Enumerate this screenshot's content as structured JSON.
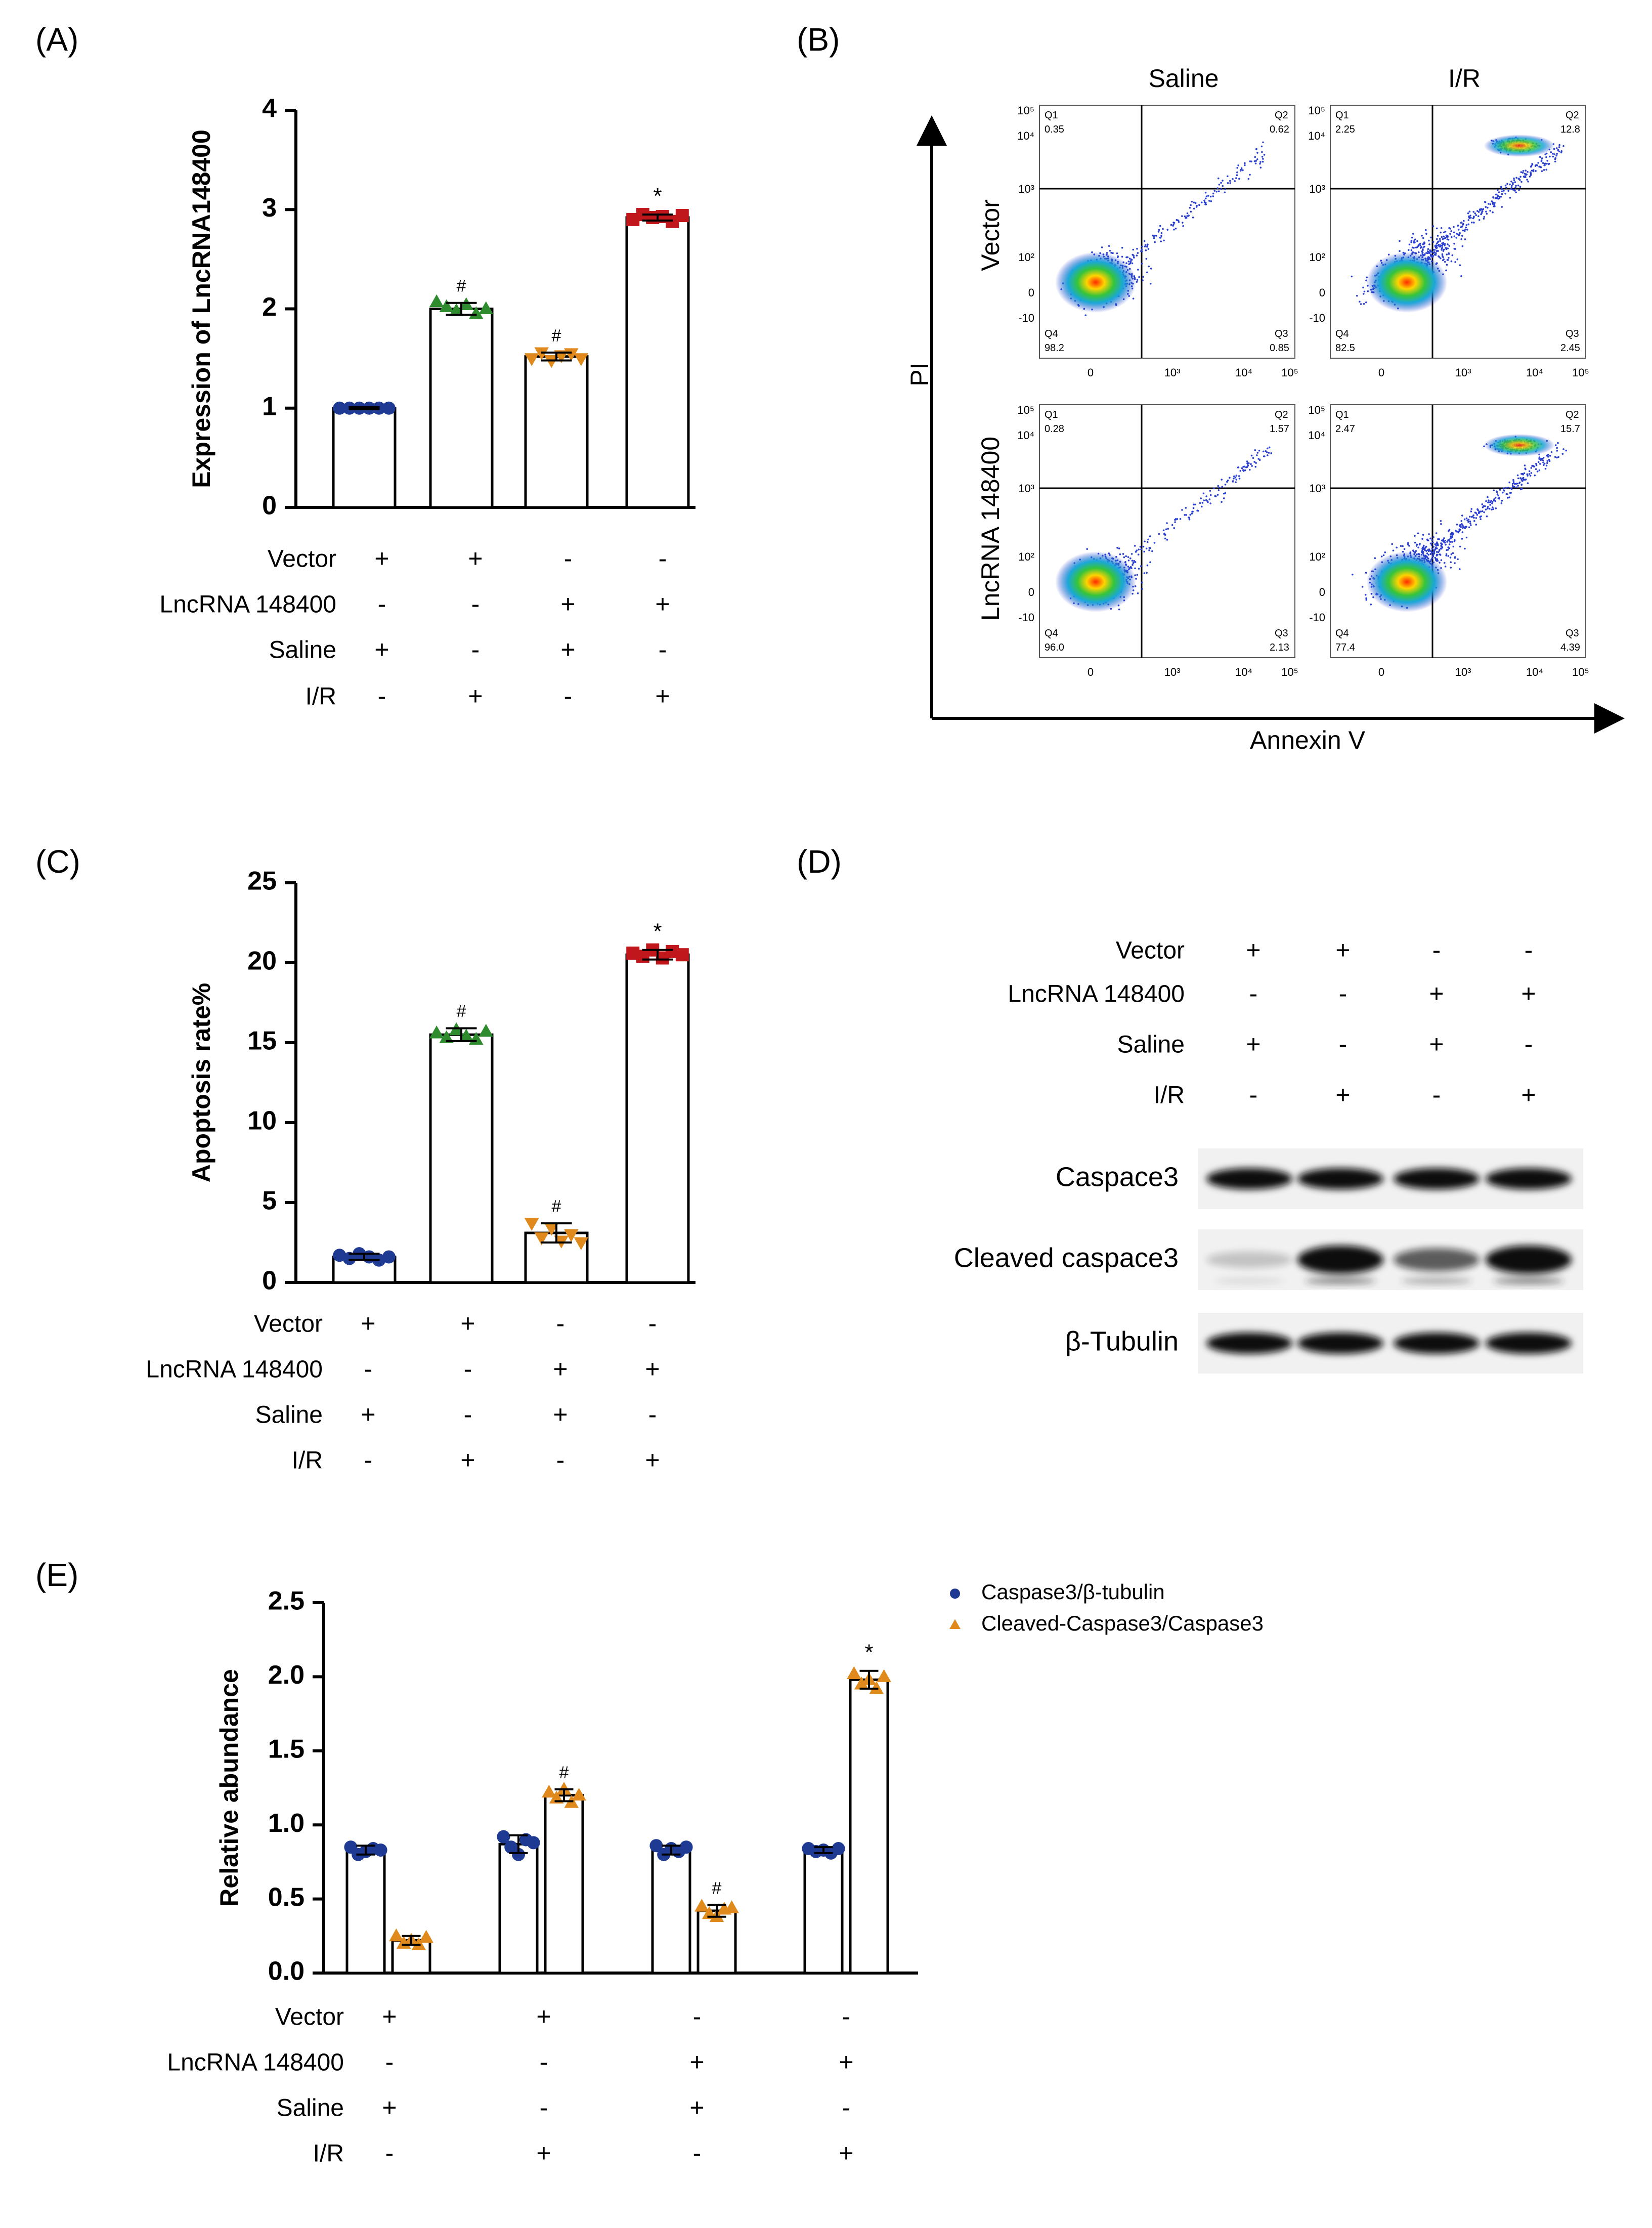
{
  "colors": {
    "blue": "#1f3a93",
    "green": "#2e8b2e",
    "orange": "#e08a1e",
    "red": "#c0171c",
    "black": "#000000"
  },
  "treatments": {
    "row_labels": [
      "Vector",
      "LncRNA 148400",
      "Saline",
      "I/R"
    ],
    "signs": [
      [
        "+",
        "+",
        "-",
        "-"
      ],
      [
        "-",
        "-",
        "+",
        "+"
      ],
      [
        "+",
        "-",
        "+",
        "-"
      ],
      [
        "-",
        "+",
        "-",
        "+"
      ]
    ]
  },
  "panels": {
    "a": "(A)",
    "b": "(B)",
    "c": "(C)",
    "d": "(D)",
    "e": "(E)"
  },
  "chart_data": [
    {
      "id": "A",
      "type": "bar",
      "ylabel": "Expression of LncRNA148400",
      "ylim": [
        0,
        4
      ],
      "yticks": [
        "0",
        "1",
        "2",
        "3",
        "4"
      ],
      "groups": [
        "Vector+Saline",
        "Vector+I/R",
        "LncRNA 148400+Saline",
        "LncRNA 148400+I/R"
      ],
      "values": [
        1.0,
        2.0,
        1.52,
        2.92
      ],
      "errors": [
        0.01,
        0.06,
        0.04,
        0.03
      ],
      "points": [
        [
          1.0,
          1.0,
          1.0,
          1.0,
          1.0,
          1.0
        ],
        [
          2.07,
          2.02,
          1.98,
          2.04,
          1.95,
          2.0
        ],
        [
          1.5,
          1.56,
          1.48,
          1.53,
          1.55,
          1.5
        ],
        [
          2.9,
          2.95,
          2.92,
          2.93,
          2.88,
          2.94
        ]
      ],
      "markers": [
        "circle",
        "triangle-up",
        "triangle-down",
        "square"
      ],
      "annotations": [
        "",
        "#",
        "#",
        "*"
      ]
    },
    {
      "id": "C",
      "type": "bar",
      "ylabel": "Apoptosis rate%",
      "ylim": [
        0,
        25
      ],
      "yticks": [
        "0",
        "5",
        "10",
        "15",
        "20",
        "25"
      ],
      "groups": [
        "Vector+Saline",
        "Vector+I/R",
        "LncRNA 148400+Saline",
        "LncRNA 148400+I/R"
      ],
      "values": [
        1.6,
        15.5,
        3.1,
        20.5
      ],
      "errors": [
        0.2,
        0.4,
        0.6,
        0.3
      ],
      "points": [
        [
          1.7,
          1.5,
          1.8,
          1.6,
          1.4,
          1.6
        ],
        [
          15.6,
          15.3,
          15.8,
          15.4,
          15.2,
          15.7
        ],
        [
          3.7,
          2.8,
          3.4,
          2.6,
          3.0,
          2.5
        ],
        [
          20.6,
          20.4,
          20.8,
          20.3,
          20.7,
          20.5
        ]
      ],
      "markers": [
        "circle",
        "triangle-up",
        "triangle-down",
        "square"
      ],
      "annotations": [
        "",
        "#",
        "#",
        "*"
      ]
    },
    {
      "id": "E",
      "type": "bar",
      "ylabel": "Relative abundance",
      "ylim": [
        0,
        2.5
      ],
      "yticks": [
        "0.0",
        "0.5",
        "1.0",
        "1.5",
        "2.0",
        "2.5"
      ],
      "groups": [
        "Vector+Saline",
        "Vector+I/R",
        "LncRNA 148400+Saline",
        "LncRNA 148400+I/R"
      ],
      "series": [
        {
          "name": "Caspase3/β-tubulin",
          "marker": "circle",
          "values": [
            0.83,
            0.87,
            0.83,
            0.83
          ],
          "errors": [
            0.03,
            0.06,
            0.03,
            0.02
          ],
          "points": [
            [
              0.85,
              0.8,
              0.82,
              0.84,
              0.83
            ],
            [
              0.92,
              0.85,
              0.8,
              0.9,
              0.88
            ],
            [
              0.86,
              0.8,
              0.84,
              0.82,
              0.85
            ],
            [
              0.84,
              0.82,
              0.83,
              0.81,
              0.84
            ]
          ],
          "annotations": [
            "",
            "",
            "",
            ""
          ]
        },
        {
          "name": "Cleaved-Caspase3/Caspase3",
          "marker": "triangle-up",
          "values": [
            0.22,
            1.2,
            0.42,
            1.98
          ],
          "errors": [
            0.03,
            0.04,
            0.04,
            0.06
          ],
          "points": [
            [
              0.25,
              0.2,
              0.22,
              0.19,
              0.24
            ],
            [
              1.22,
              1.18,
              1.24,
              1.15,
              1.2
            ],
            [
              0.45,
              0.4,
              0.38,
              0.43,
              0.44
            ],
            [
              2.02,
              1.95,
              1.98,
              1.92,
              2.0
            ]
          ],
          "annotations": [
            "",
            "#",
            "#",
            "*"
          ]
        }
      ]
    }
  ],
  "flow": {
    "col_labels": [
      "Saline",
      "I/R"
    ],
    "row_labels": [
      "Vector",
      "LncRNA 148400"
    ],
    "y_axis_label": "PI",
    "x_axis_label": "Annexin V",
    "plots": [
      {
        "q1": "Q1",
        "q1v": "0.35",
        "q2": "Q2",
        "q2v": "0.62",
        "q3": "Q3",
        "q3v": "0.85",
        "q4": "Q4",
        "q4v": "98.2"
      },
      {
        "q1": "Q1",
        "q1v": "2.25",
        "q2": "Q2",
        "q2v": "12.8",
        "q3": "Q3",
        "q3v": "2.45",
        "q4": "Q4",
        "q4v": "82.5"
      },
      {
        "q1": "Q1",
        "q1v": "0.28",
        "q2": "Q2",
        "q2v": "1.57",
        "q3": "Q3",
        "q3v": "2.13",
        "q4": "Q4",
        "q4v": "96.0"
      },
      {
        "q1": "Q1",
        "q1v": "2.47",
        "q2": "Q2",
        "q2v": "15.7",
        "q3": "Q3",
        "q3v": "4.39",
        "q4": "Q4",
        "q4v": "77.4"
      }
    ],
    "ytick_labels": [
      "10⁵",
      "10⁴",
      "10³",
      "10²",
      "0",
      "-10"
    ],
    "xtick_labels": [
      "0",
      "10³",
      "10⁴",
      "10⁵"
    ]
  },
  "western": {
    "bands": [
      "Caspace3",
      "Cleaved caspace3",
      "β-Tubulin"
    ],
    "cleaved_intensity": [
      0.2,
      1.0,
      0.65,
      1.0
    ]
  }
}
